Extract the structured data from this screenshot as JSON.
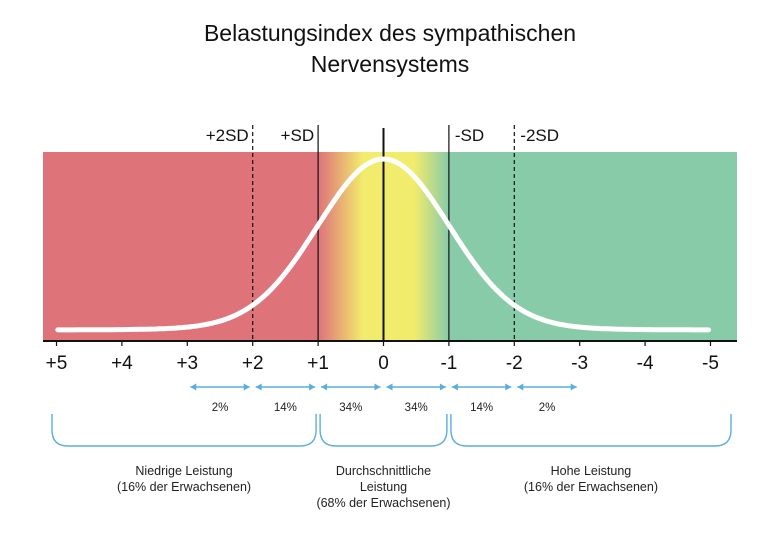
{
  "title_line1": "Belastungsindex des sympathischen",
  "title_line2": "Nervensystems",
  "chart_data": {
    "type": "area",
    "title": "Belastungsindex des sympathischen Nervensystems",
    "xlabel": "",
    "ylabel": "",
    "x_reversed": true,
    "xlim": [
      5,
      -5
    ],
    "x_ticks": [
      {
        "value": 5,
        "label": "+5"
      },
      {
        "value": 4,
        "label": "+4"
      },
      {
        "value": 3,
        "label": "+3"
      },
      {
        "value": 2,
        "label": "+2"
      },
      {
        "value": 1,
        "label": "+1"
      },
      {
        "value": 0,
        "label": "0"
      },
      {
        "value": -1,
        "label": "-1"
      },
      {
        "value": -2,
        "label": "-2"
      },
      {
        "value": -3,
        "label": "-3"
      },
      {
        "value": -4,
        "label": "-4"
      },
      {
        "value": -5,
        "label": "-5"
      }
    ],
    "curve": "normal distribution, mean 0, sd 1",
    "zones": [
      {
        "from": 5,
        "to": 1,
        "color": "#de737a"
      },
      {
        "from": 1,
        "to": -1,
        "color": "#f2ec6c"
      },
      {
        "from": -1,
        "to": -5,
        "color": "#88cba9"
      }
    ],
    "sd_lines": [
      {
        "value": 2,
        "label": "+2SD",
        "style": "dashed"
      },
      {
        "value": 1,
        "label": "+SD",
        "style": "solid"
      },
      {
        "value": 0,
        "label": "",
        "style": "solid"
      },
      {
        "value": -1,
        "label": "-SD",
        "style": "solid"
      },
      {
        "value": -2,
        "label": "-2SD",
        "style": "dashed"
      }
    ],
    "percent_ranges": [
      {
        "from": 3,
        "to": 2,
        "label": "2%"
      },
      {
        "from": 2,
        "to": 1,
        "label": "14%"
      },
      {
        "from": 1,
        "to": 0,
        "label": "34%"
      },
      {
        "from": 0,
        "to": -1,
        "label": "34%"
      },
      {
        "from": -1,
        "to": -2,
        "label": "14%"
      },
      {
        "from": -2,
        "to": -3,
        "label": "2%"
      }
    ],
    "groups": [
      {
        "from": 5,
        "to": 1,
        "lines": [
          "Niedrige Leistung",
          "(16% der Erwachsenen)"
        ]
      },
      {
        "from": 1,
        "to": -1,
        "lines": [
          "Durchschnittliche",
          "Leistung",
          "(68% der Erwachsenen)"
        ]
      },
      {
        "from": -1,
        "to": -5,
        "lines": [
          "Hohe Leistung",
          "(16% der Erwachsenen)"
        ]
      }
    ],
    "colors": {
      "curve": "#ffffff",
      "arrows": "#5aaedc",
      "brackets": "#5aaedc",
      "axis": "#111111"
    }
  }
}
